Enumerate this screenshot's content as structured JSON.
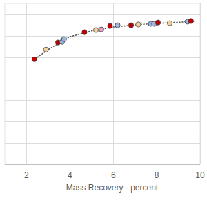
{
  "chart_data": {
    "type": "scatter",
    "x_label": "Mass Recovery - percent",
    "xlim": [
      1,
      10
    ],
    "xticks": [
      2,
      4,
      6,
      8,
      10
    ],
    "ylim": [
      0,
      75
    ],
    "yticks": [
      0,
      10,
      20,
      30,
      40,
      50,
      60,
      70
    ],
    "grid": true,
    "tick_labels": "x",
    "series": [
      {
        "type": "line",
        "color": "#555555",
        "line_style": "dotted",
        "x": [
          2.3,
          3,
          4,
          5,
          6,
          7,
          8,
          9,
          9.7
        ],
        "values": [
          48.5,
          53.5,
          59.5,
          62.2,
          64,
          65,
          65.7,
          66.2,
          66.6
        ]
      },
      {
        "type": "scatter",
        "marker": "circle",
        "x": [
          2.36,
          2.9,
          3.45,
          3.64,
          3.73,
          4.67,
          5.2,
          5.45,
          5.85,
          6.2,
          6.82,
          7.15,
          7.73,
          7.88,
          8.06,
          8.6,
          9.42,
          9.58
        ],
        "values": [
          49.0,
          53.5,
          56.8,
          57.1,
          58.4,
          61.6,
          62.6,
          62.9,
          64.5,
          64.8,
          64.8,
          65.2,
          65.5,
          65.5,
          66.1,
          65.8,
          66.5,
          66.8
        ],
        "colors": [
          "#c00000",
          "#f2d39b",
          "#c00000",
          "#9cb4e0",
          "#9cb4e0",
          "#c00000",
          "#f2d39b",
          "#e79bc8",
          "#c00000",
          "#9cb4e0",
          "#c00000",
          "#f2d39b",
          "#9cb4e0",
          "#9cb4e0",
          "#c00000",
          "#f2d39b",
          "#9cb4e0",
          "#c00000"
        ]
      }
    ]
  }
}
